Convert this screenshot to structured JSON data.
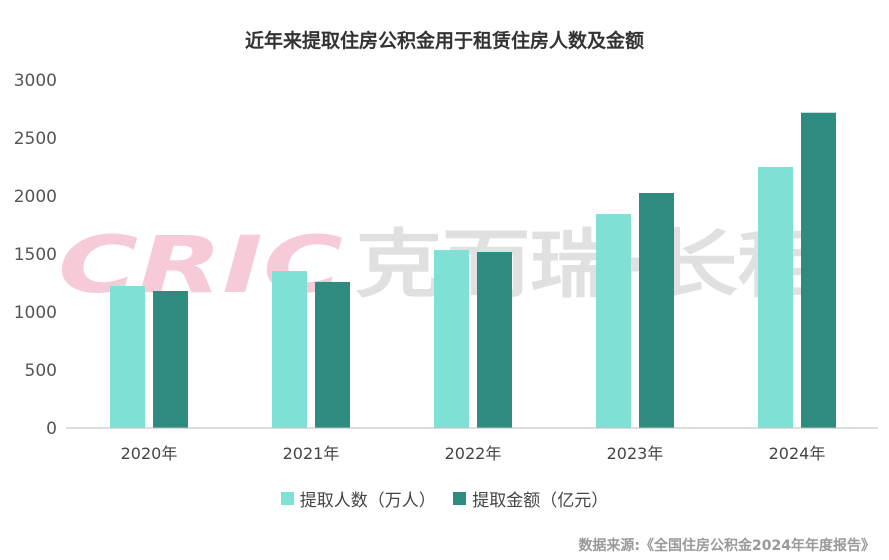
{
  "chart_data": {
    "type": "bar",
    "title": "近年来提取住房公积金用于租赁住房人数及金额",
    "categories": [
      "2020年",
      "2021年",
      "2022年",
      "2023年",
      "2024年"
    ],
    "series": [
      {
        "name": "提取人数（万人）",
        "color": "#7fe0d6",
        "values": [
          1224,
          1353,
          1534,
          1845,
          2250
        ]
      },
      {
        "name": "提取金额（亿元）",
        "color": "#2e8b80",
        "values": [
          1181,
          1259,
          1517,
          2026,
          2718
        ]
      }
    ],
    "yticks": [
      "0",
      "500",
      "1000",
      "1500",
      "2000",
      "2500",
      "3000"
    ],
    "ylim": [
      0,
      3000
    ],
    "grid": false,
    "legend": "bottom",
    "xlabel": "",
    "ylabel": ""
  },
  "source": "数据来源:《全国住房公积金2024年年度报告》",
  "watermark": {
    "logo": "CRIC",
    "text": "克而瑞·长租"
  }
}
